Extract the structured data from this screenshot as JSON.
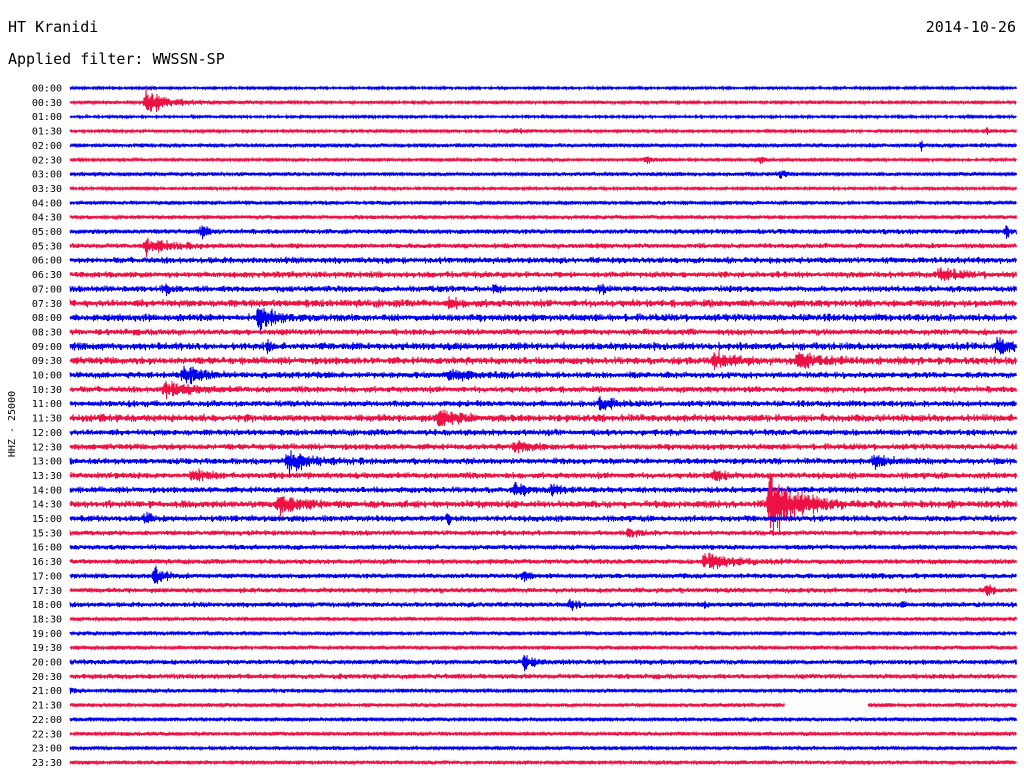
{
  "header": {
    "station": "HT Kranidi",
    "date": "2014-10-26",
    "filter_label": "Applied filter: WWSSN-SP"
  },
  "chart_data": {
    "type": "line",
    "title": "HT Kranidi",
    "ylabel": "HHZ - 25000",
    "colors": [
      "#0000ee",
      "#ee1144"
    ],
    "rows": [
      "00:00",
      "00:30",
      "01:00",
      "01:30",
      "02:00",
      "02:30",
      "03:00",
      "03:30",
      "04:00",
      "04:30",
      "05:00",
      "05:30",
      "06:00",
      "06:30",
      "07:00",
      "07:30",
      "08:00",
      "08:30",
      "09:00",
      "09:30",
      "10:00",
      "10:30",
      "11:00",
      "11:30",
      "12:00",
      "12:30",
      "13:00",
      "13:30",
      "14:00",
      "14:30",
      "15:00",
      "15:30",
      "16:00",
      "16:30",
      "17:00",
      "17:30",
      "18:00",
      "18:30",
      "19:00",
      "19:30",
      "20:00",
      "20:30",
      "21:00",
      "21:30",
      "22:00",
      "22:30",
      "23:00",
      "23:30"
    ],
    "noise": [
      1,
      1.2,
      1,
      1.2,
      1.5,
      1.2,
      1.5,
      1.2,
      1.5,
      1.5,
      2,
      2,
      2.5,
      2.5,
      2.5,
      3,
      3,
      2.5,
      3,
      3,
      2.5,
      2.5,
      2.5,
      3,
      2.5,
      2.5,
      2.5,
      2.5,
      2.5,
      3,
      2.5,
      2,
      2,
      2,
      2,
      2,
      2,
      1.5,
      1.5,
      1.5,
      2,
      2,
      1.5,
      1.5,
      1.5,
      1.5,
      1.5,
      1.5
    ],
    "events": [
      {
        "row": "00:30",
        "t": 0.08,
        "amp": 16,
        "dur": 0.05
      },
      {
        "row": "01:30",
        "t": 0.47,
        "amp": 3,
        "dur": 0.02
      },
      {
        "row": "01:30",
        "t": 0.97,
        "amp": 4,
        "dur": 0.005
      },
      {
        "row": "02:00",
        "t": 0.9,
        "amp": 6,
        "dur": 0.005
      },
      {
        "row": "02:30",
        "t": 0.61,
        "amp": 8,
        "dur": 0.01
      },
      {
        "row": "02:30",
        "t": 0.73,
        "amp": 4,
        "dur": 0.01
      },
      {
        "row": "03:00",
        "t": 0.75,
        "amp": 6,
        "dur": 0.015
      },
      {
        "row": "05:00",
        "t": 0.14,
        "amp": 10,
        "dur": 0.01
      },
      {
        "row": "05:00",
        "t": 0.99,
        "amp": 7,
        "dur": 0.005
      },
      {
        "row": "05:30",
        "t": 0.08,
        "amp": 10,
        "dur": 0.05
      },
      {
        "row": "06:30",
        "t": 0.92,
        "amp": 8,
        "dur": 0.04
      },
      {
        "row": "07:00",
        "t": 0.1,
        "amp": 8,
        "dur": 0.01
      },
      {
        "row": "07:00",
        "t": 0.45,
        "amp": 6,
        "dur": 0.01
      },
      {
        "row": "07:00",
        "t": 0.56,
        "amp": 6,
        "dur": 0.01
      },
      {
        "row": "07:30",
        "t": 0.4,
        "amp": 6,
        "dur": 0.02
      },
      {
        "row": "08:00",
        "t": 0.2,
        "amp": 16,
        "dur": 0.03
      },
      {
        "row": "09:00",
        "t": 0.21,
        "amp": 8,
        "dur": 0.005
      },
      {
        "row": "09:00",
        "t": 0.98,
        "amp": 10,
        "dur": 0.03
      },
      {
        "row": "09:30",
        "t": 0.68,
        "amp": 10,
        "dur": 0.04
      },
      {
        "row": "09:30",
        "t": 0.77,
        "amp": 10,
        "dur": 0.05
      },
      {
        "row": "10:00",
        "t": 0.12,
        "amp": 12,
        "dur": 0.04
      },
      {
        "row": "10:00",
        "t": 0.4,
        "amp": 6,
        "dur": 0.06
      },
      {
        "row": "10:30",
        "t": 0.1,
        "amp": 10,
        "dur": 0.05
      },
      {
        "row": "11:00",
        "t": 0.56,
        "amp": 8,
        "dur": 0.03
      },
      {
        "row": "11:30",
        "t": 0.39,
        "amp": 12,
        "dur": 0.04
      },
      {
        "row": "12:30",
        "t": 0.47,
        "amp": 6,
        "dur": 0.04
      },
      {
        "row": "13:00",
        "t": 0.23,
        "amp": 14,
        "dur": 0.05
      },
      {
        "row": "13:00",
        "t": 0.85,
        "amp": 8,
        "dur": 0.04
      },
      {
        "row": "13:30",
        "t": 0.13,
        "amp": 8,
        "dur": 0.03
      },
      {
        "row": "13:30",
        "t": 0.68,
        "amp": 8,
        "dur": 0.02
      },
      {
        "row": "14:00",
        "t": 0.47,
        "amp": 7,
        "dur": 0.03
      },
      {
        "row": "14:00",
        "t": 0.51,
        "amp": 7,
        "dur": 0.015
      },
      {
        "row": "14:30",
        "t": 0.22,
        "amp": 14,
        "dur": 0.04
      },
      {
        "row": "14:30",
        "t": 0.74,
        "amp": 40,
        "dur": 0.06
      },
      {
        "row": "15:00",
        "t": 0.08,
        "amp": 8,
        "dur": 0.01
      },
      {
        "row": "15:00",
        "t": 0.4,
        "amp": 10,
        "dur": 0.005
      },
      {
        "row": "15:30",
        "t": 0.59,
        "amp": 6,
        "dur": 0.02
      },
      {
        "row": "16:30",
        "t": 0.67,
        "amp": 10,
        "dur": 0.06
      },
      {
        "row": "17:00",
        "t": 0.09,
        "amp": 12,
        "dur": 0.02
      },
      {
        "row": "17:00",
        "t": 0.48,
        "amp": 8,
        "dur": 0.01
      },
      {
        "row": "17:30",
        "t": 0.97,
        "amp": 9,
        "dur": 0.01
      },
      {
        "row": "18:00",
        "t": 0.53,
        "amp": 8,
        "dur": 0.01
      },
      {
        "row": "18:00",
        "t": 0.67,
        "amp": 7,
        "dur": 0.005
      },
      {
        "row": "18:00",
        "t": 0.88,
        "amp": 6,
        "dur": 0.005
      },
      {
        "row": "20:00",
        "t": 0.48,
        "amp": 10,
        "dur": 0.02
      },
      {
        "row": "21:00",
        "t": 0.0,
        "amp": 4,
        "dur": 0.01
      }
    ],
    "gaps": [
      {
        "row": "21:30",
        "t_start": 0.755,
        "t_end": 0.843
      }
    ]
  }
}
